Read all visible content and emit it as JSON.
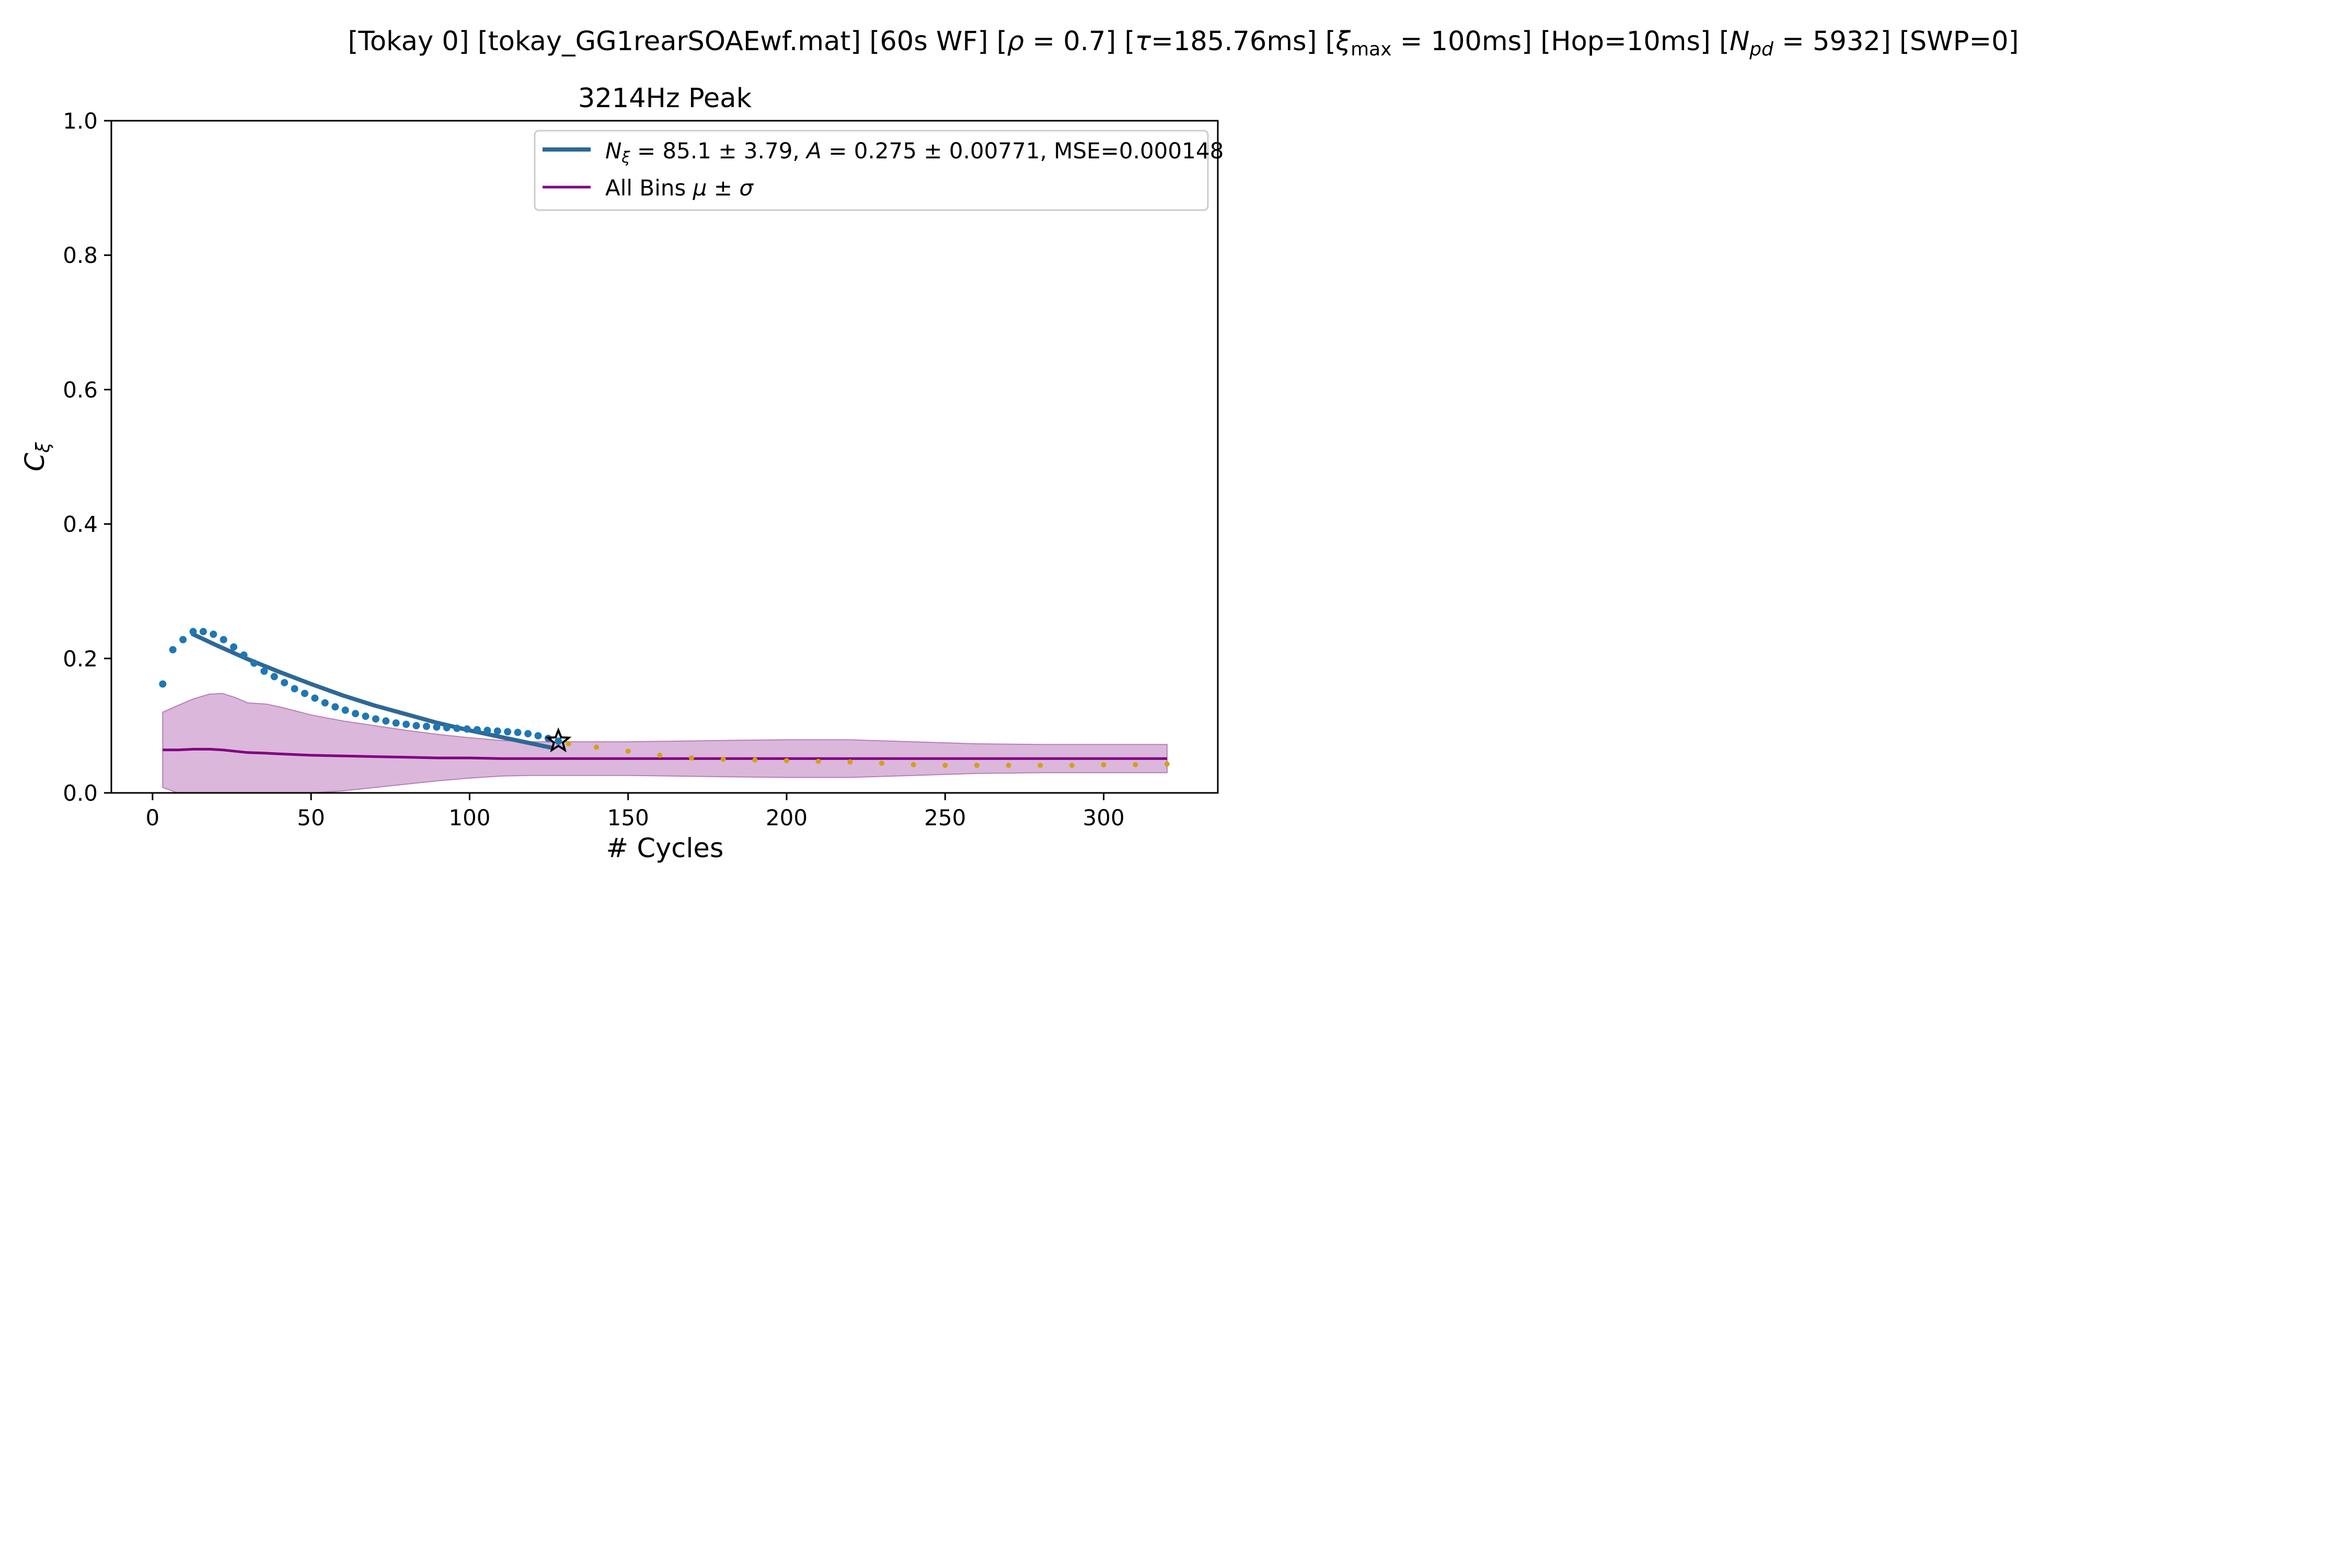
{
  "suptitle": {
    "text": "[Tokay 0]   [tokay_GG1rearSOAEwf.mat]   [60s WF]   [ρ = 0.7]   [τ=185.76ms]   [ξmax = 100ms]   [Hop=10ms]   [Npd = 5932]   [SWP=0]",
    "p1": "[Tokay 0]   [tokay_GG1rearSOAEwf.mat]   [60s WF]   [",
    "rho": "ρ",
    "p2": " = 0.7]   [",
    "tau": "τ",
    "p3": "=185.76ms]   [",
    "xi": "ξ",
    "xi_sub": "max",
    "p4": " = 100ms]   [Hop=10ms]   [",
    "n": "N",
    "n_sub": "pd",
    "p5": " = 5932]   [SWP=0]"
  },
  "colors": {
    "fit": "#2e6896",
    "points": "#1f77b4",
    "extension": "#d4a017",
    "mean": "#800080",
    "band": "#d9b3d9",
    "band_edge": "#b67fb6"
  },
  "chart_data": {
    "type": "line",
    "title": "3214Hz Peak",
    "xlabel": "# Cycles",
    "ylabel_main": "C",
    "ylabel_sub": "ξ",
    "xlim": [
      -13,
      336
    ],
    "ylim": [
      0,
      1
    ],
    "xticks": [
      0,
      50,
      100,
      150,
      200,
      250,
      300
    ],
    "yticks": [
      0.0,
      0.2,
      0.4,
      0.6,
      0.8,
      1.0
    ],
    "ytick_labels": [
      "0.0",
      "0.2",
      "0.4",
      "0.6",
      "0.8",
      "1.0"
    ],
    "grid": false,
    "legend_position": "upper right",
    "legend": [
      {
        "label": "Nξ = 85.1 ± 3.79, A = 0.275 ± 0.00771, MSE=0.000148",
        "parts": [
          "N",
          "ξ",
          " = 85.1 ± 3.79, ",
          "A",
          " = 0.275 ± 0.00771, MSE=0.000148"
        ]
      },
      {
        "label": "All Bins μ ± σ",
        "parts": [
          "All Bins ",
          "μ ± σ"
        ]
      }
    ],
    "series": [
      {
        "name": "Nξ = 85.1 ± 3.79, A = 0.275 ± 0.00771, MSE=0.000148",
        "kind": "fit_curve",
        "x": [
          12.3,
          20,
          30,
          40,
          50,
          60,
          70,
          80,
          90,
          100,
          110,
          120,
          126
        ],
        "y": [
          0.237,
          0.22,
          0.199,
          0.18,
          0.162,
          0.145,
          0.13,
          0.117,
          0.104,
          0.093,
          0.083,
          0.073,
          0.067
        ]
      },
      {
        "kind": "coherence_points",
        "x": [
          3.2,
          6.4,
          9.6,
          12.8,
          16,
          19.2,
          22.4,
          25.6,
          28.8,
          32,
          35.2,
          38.4,
          41.6,
          44.8,
          48,
          51.2,
          54.4,
          57.6,
          60.8,
          64,
          67.2,
          70.4,
          73.6,
          76.8,
          80,
          83.2,
          86.4,
          89.6,
          92.8,
          96,
          99.2,
          102.4,
          105.6,
          108.8,
          112,
          115.2,
          118.4,
          121.6,
          124.8,
          128
        ],
        "y": [
          0.162,
          0.213,
          0.228,
          0.24,
          0.24,
          0.236,
          0.228,
          0.217,
          0.205,
          0.193,
          0.181,
          0.173,
          0.164,
          0.155,
          0.148,
          0.141,
          0.134,
          0.128,
          0.123,
          0.118,
          0.114,
          0.11,
          0.107,
          0.104,
          0.102,
          0.1,
          0.099,
          0.098,
          0.097,
          0.096,
          0.095,
          0.094,
          0.093,
          0.092,
          0.091,
          0.09,
          0.088,
          0.085,
          0.081,
          0.077
        ]
      },
      {
        "kind": "coherence_extension",
        "x": [
          131.2,
          140,
          150,
          160,
          170,
          180,
          190,
          200,
          210,
          220,
          230,
          240,
          250,
          260,
          270,
          280,
          290,
          300,
          310,
          320
        ],
        "y": [
          0.073,
          0.068,
          0.062,
          0.056,
          0.052,
          0.05,
          0.049,
          0.048,
          0.047,
          0.046,
          0.044,
          0.042,
          0.041,
          0.041,
          0.041,
          0.041,
          0.041,
          0.042,
          0.042,
          0.043
        ]
      },
      {
        "kind": "peak_marker",
        "x": [
          128
        ],
        "y": [
          0.077
        ]
      },
      {
        "name": "All Bins μ ± σ",
        "kind": "mean_band",
        "x": [
          3.2,
          8,
          13,
          18,
          22,
          26,
          30,
          36,
          40,
          50,
          60,
          70,
          80,
          90,
          100,
          110,
          120,
          130,
          150,
          180,
          200,
          220,
          240,
          260,
          280,
          300,
          320
        ],
        "mean": [
          0.064,
          0.064,
          0.065,
          0.065,
          0.064,
          0.062,
          0.06,
          0.059,
          0.058,
          0.056,
          0.055,
          0.054,
          0.053,
          0.052,
          0.052,
          0.051,
          0.051,
          0.051,
          0.051,
          0.051,
          0.051,
          0.051,
          0.051,
          0.051,
          0.051,
          0.051,
          0.051
        ],
        "upper": [
          0.12,
          0.13,
          0.14,
          0.147,
          0.148,
          0.142,
          0.134,
          0.132,
          0.128,
          0.116,
          0.107,
          0.1,
          0.093,
          0.087,
          0.082,
          0.078,
          0.076,
          0.076,
          0.076,
          0.078,
          0.079,
          0.079,
          0.076,
          0.073,
          0.072,
          0.072,
          0.072
        ],
        "lower": [
          0.008,
          0.0,
          -0.01,
          -0.018,
          -0.02,
          -0.018,
          -0.014,
          -0.012,
          -0.01,
          -0.004,
          0.003,
          0.008,
          0.013,
          0.018,
          0.022,
          0.025,
          0.026,
          0.026,
          0.026,
          0.024,
          0.023,
          0.023,
          0.026,
          0.029,
          0.03,
          0.03,
          0.03
        ]
      }
    ]
  }
}
